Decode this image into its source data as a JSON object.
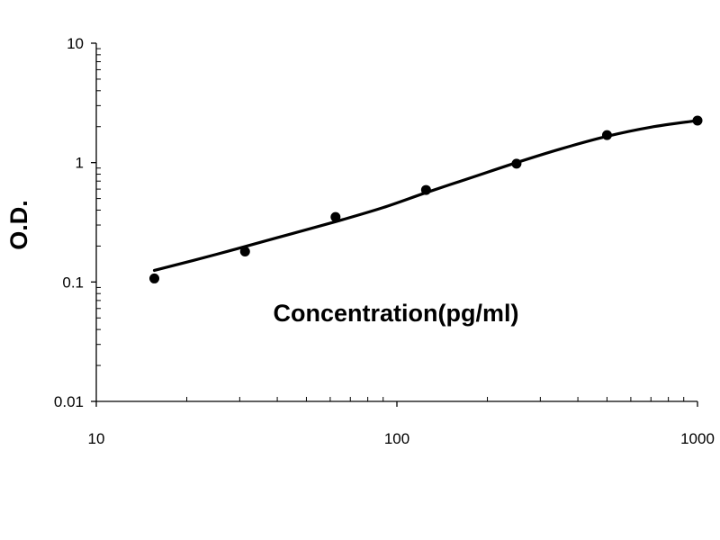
{
  "chart_data": {
    "type": "scatter",
    "title": "",
    "xlabel": "Concentration(pg/ml)",
    "ylabel": "O.D.",
    "x_scale": "log",
    "y_scale": "log",
    "xlim": [
      10,
      1000
    ],
    "ylim": [
      0.01,
      10
    ],
    "x_ticks": [
      {
        "value": 10,
        "label": "10"
      },
      {
        "value": 100,
        "label": "100"
      },
      {
        "value": 1000,
        "label": "1000"
      }
    ],
    "y_ticks": [
      {
        "value": 0.01,
        "label": "0.01"
      },
      {
        "value": 0.1,
        "label": "0.1"
      },
      {
        "value": 1,
        "label": "1"
      },
      {
        "value": 10,
        "label": "10"
      }
    ],
    "grid": false,
    "legend": "none",
    "series": [
      {
        "kind": "points",
        "color": "#000000",
        "points": [
          {
            "x": 15.6,
            "y": 0.107
          },
          {
            "x": 31.25,
            "y": 0.18
          },
          {
            "x": 62.5,
            "y": 0.35
          },
          {
            "x": 125,
            "y": 0.59
          },
          {
            "x": 250,
            "y": 0.98
          },
          {
            "x": 500,
            "y": 1.7
          },
          {
            "x": 1000,
            "y": 2.25
          }
        ]
      },
      {
        "kind": "fit-curve",
        "color": "#000000",
        "points": [
          {
            "x": 15.6,
            "y": 0.125
          },
          {
            "x": 25,
            "y": 0.17
          },
          {
            "x": 40,
            "y": 0.235
          },
          {
            "x": 62.5,
            "y": 0.32
          },
          {
            "x": 90,
            "y": 0.42
          },
          {
            "x": 125,
            "y": 0.56
          },
          {
            "x": 180,
            "y": 0.76
          },
          {
            "x": 250,
            "y": 1.0
          },
          {
            "x": 350,
            "y": 1.3
          },
          {
            "x": 500,
            "y": 1.66
          },
          {
            "x": 700,
            "y": 1.98
          },
          {
            "x": 1000,
            "y": 2.25
          }
        ]
      }
    ]
  }
}
